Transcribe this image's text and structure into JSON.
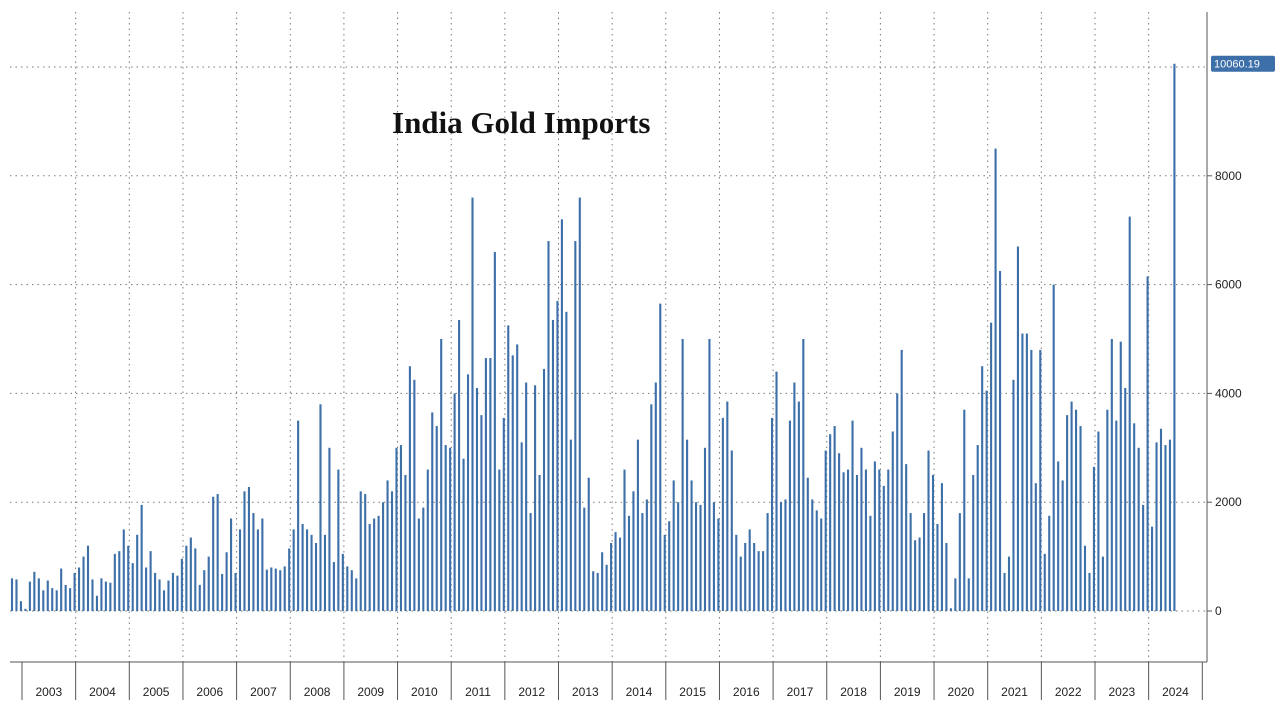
{
  "chart_data": {
    "type": "bar",
    "title": "India Gold Imports",
    "xlabel": "",
    "ylabel": "",
    "ylim": [
      -950,
      11000
    ],
    "y_ticks": [
      0,
      2000,
      4000,
      6000,
      8000
    ],
    "y_tick_labels": [
      "0",
      "2000",
      "4000",
      "6000",
      "8000"
    ],
    "last_value_label": "10060.19",
    "color": "#3d6fa8",
    "grid": true,
    "years": [
      "2003",
      "2004",
      "2005",
      "2006",
      "2007",
      "2008",
      "2009",
      "2010",
      "2011",
      "2012",
      "2013",
      "2014",
      "2015",
      "2016",
      "2017",
      "2018",
      "2019",
      "2020",
      "2021",
      "2022",
      "2023",
      "2024"
    ],
    "series": [
      {
        "name": "2003",
        "values": [
          600,
          580,
          180,
          40,
          540,
          720,
          600,
          380,
          560,
          420,
          380,
          780
        ]
      },
      {
        "name": "2004",
        "values": [
          480,
          420,
          700,
          800,
          1000,
          1200,
          580,
          280,
          600,
          540,
          520,
          1050
        ]
      },
      {
        "name": "2005",
        "values": [
          1100,
          1500,
          1200,
          880,
          1400,
          1950,
          800,
          1100,
          700,
          580,
          380,
          560
        ]
      },
      {
        "name": "2006",
        "values": [
          700,
          650,
          960,
          1200,
          1350,
          1150,
          480,
          750,
          1000,
          2100,
          2150,
          680
        ]
      },
      {
        "name": "2007",
        "values": [
          1080,
          1700,
          700,
          1500,
          2200,
          2280,
          1800,
          1500,
          1700,
          760,
          800,
          780
        ]
      },
      {
        "name": "2008",
        "values": [
          750,
          820,
          1150,
          1500,
          3500,
          1600,
          1500,
          1400,
          1250,
          3800,
          1400,
          3000
        ]
      },
      {
        "name": "2009",
        "values": [
          900,
          2600,
          1050,
          820,
          750,
          600,
          2200,
          2150,
          1600,
          1700,
          1750,
          2000
        ]
      },
      {
        "name": "2010",
        "values": [
          2400,
          2200,
          3000,
          3050,
          2500,
          4500,
          4250,
          1700,
          1900,
          2600,
          3650,
          3400
        ]
      },
      {
        "name": "2011",
        "values": [
          5000,
          3050,
          3000,
          4000,
          5350,
          2800,
          4350,
          7600,
          4100,
          3600,
          4650,
          4650
        ]
      },
      {
        "name": "2012",
        "values": [
          6600,
          2600,
          3550,
          5250,
          4700,
          4900,
          3100,
          4200,
          1800,
          4150,
          2500,
          4450
        ]
      },
      {
        "name": "2013",
        "values": [
          6800,
          5350,
          5700,
          7200,
          5500,
          3150,
          6800,
          7600,
          1900,
          2450,
          730,
          700
        ]
      },
      {
        "name": "2014",
        "values": [
          1080,
          850,
          1250,
          1450,
          1350,
          2600,
          1750,
          2200,
          3150,
          1800,
          2050,
          3800
        ]
      },
      {
        "name": "2015",
        "values": [
          4200,
          5650,
          1400,
          1650,
          2400,
          2000,
          5000,
          3150,
          2400,
          2000,
          1950,
          3000
        ]
      },
      {
        "name": "2016",
        "values": [
          5000,
          2000,
          1700,
          3550,
          3850,
          2950,
          1400,
          1000,
          1250,
          1500,
          1250,
          1100
        ]
      },
      {
        "name": "2017",
        "values": [
          1100,
          1800,
          3550,
          4400,
          2000,
          2050,
          3500,
          4200,
          3850,
          5000,
          2450,
          2050
        ]
      },
      {
        "name": "2018",
        "values": [
          1850,
          1700,
          2950,
          3250,
          3400,
          2900,
          2550,
          2600,
          3500,
          2500,
          3000,
          2600
        ]
      },
      {
        "name": "2019",
        "values": [
          1750,
          2750,
          2600,
          2300,
          2600,
          3300,
          4000,
          4800,
          2700,
          1800,
          1300,
          1350
        ]
      },
      {
        "name": "2020",
        "values": [
          1800,
          2950,
          2500,
          1600,
          2350,
          1250,
          50,
          600,
          1800,
          3700,
          600,
          2500
        ]
      },
      {
        "name": "2021",
        "values": [
          3050,
          4500,
          4050,
          5300,
          8500,
          6250,
          700,
          1000,
          4250,
          6700,
          5100,
          5100
        ]
      },
      {
        "name": "2022",
        "values": [
          4800,
          2350,
          4800,
          1050,
          1750,
          6000,
          2750,
          2400,
          3600,
          3850,
          3700,
          3400
        ]
      },
      {
        "name": "2023",
        "values": [
          1200,
          700,
          2650,
          3300,
          1000,
          3700,
          5000,
          3500,
          4950,
          4100,
          7250,
          3450
        ]
      },
      {
        "name": "2024",
        "values": [
          3000,
          1950,
          6150,
          1550,
          3100,
          3350,
          3050,
          3150,
          10060.19
        ]
      }
    ]
  }
}
